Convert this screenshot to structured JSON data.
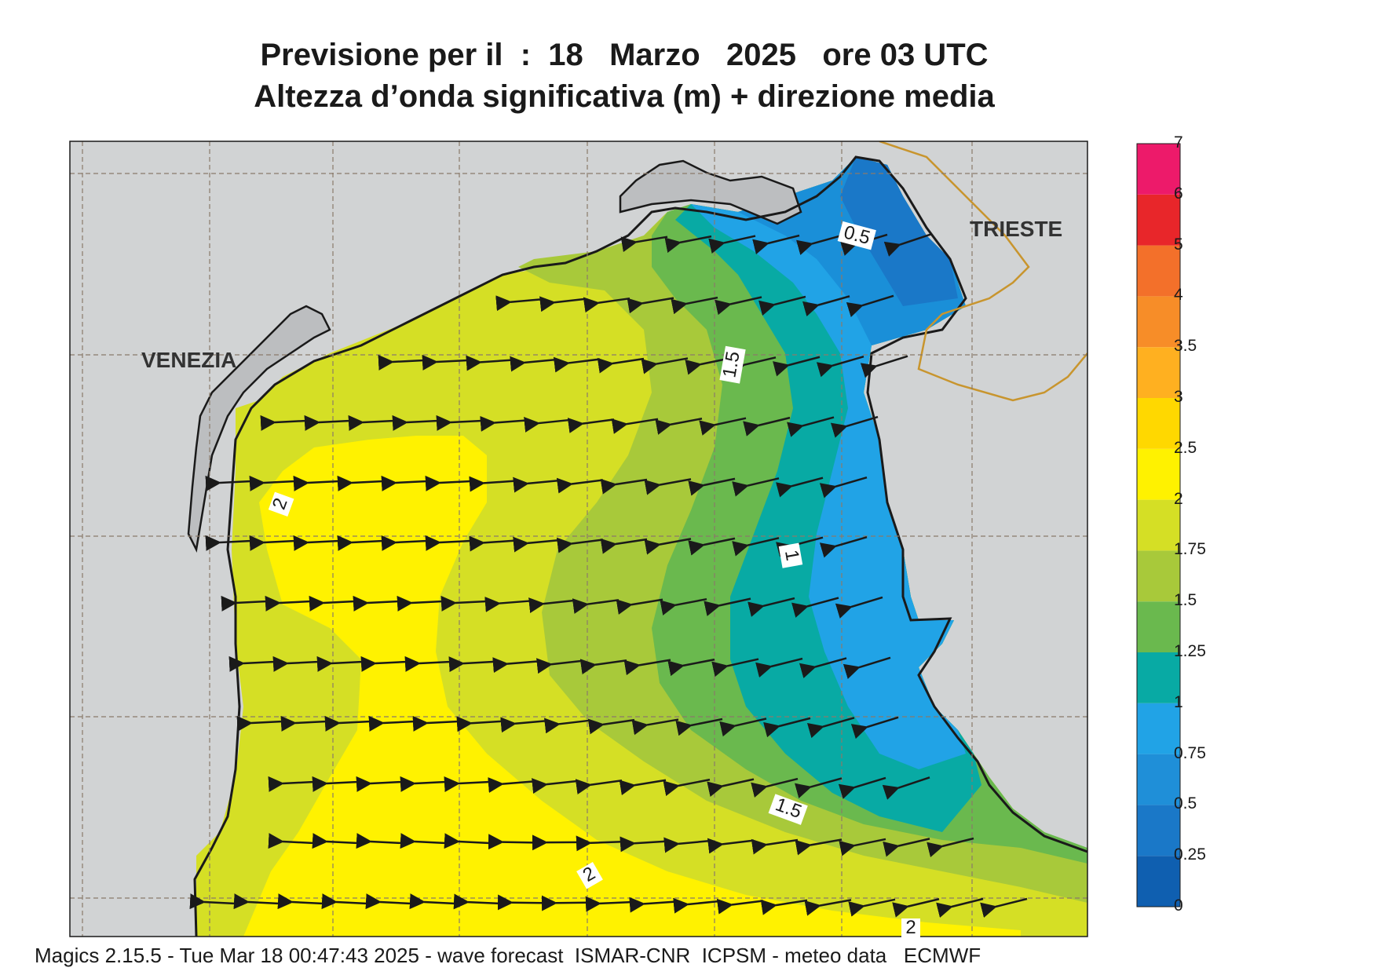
{
  "title": {
    "line1": "Previsione per il  :  18   Marzo   2025   ore 03 UTC",
    "line2": "Altezza d’onda significativa (m) + direzione media"
  },
  "city_labels": {
    "venezia": "VENEZIA",
    "trieste": "TRIESTE"
  },
  "contour_labels": [
    "0.5",
    "1.5",
    "1",
    "1.5",
    "2",
    "2",
    "2"
  ],
  "colorbar": {
    "labels": [
      "0",
      "0.25",
      "0.5",
      "0.75",
      "1",
      "1.25",
      "1.5",
      "1.75",
      "2",
      "2.5",
      "3",
      "3.5",
      "4",
      "5",
      "6",
      "7"
    ],
    "colors": [
      "#0f5fb0",
      "#1a78c8",
      "#1f8fd8",
      "#21a3e6",
      "#08aaa4",
      "#6ab94e",
      "#a8c93a",
      "#d5df25",
      "#fff200",
      "#ffd800",
      "#ffb020",
      "#f78d28",
      "#f3702a",
      "#e8262a",
      "#ed1a6a"
    ]
  },
  "colors": {
    "land": "#d1d3d4",
    "land_dark": "#bcbec0",
    "coast": "#1a1a1a",
    "border": "#c8952e",
    "grid": "#8a7a6a",
    "arrow": "#1a1a1a"
  },
  "footer": "Magics 2.15.5 - Tue Mar 18 00:47:43 2025 - wave forecast  ISMAR-CNR  ICPSM - meteo data   ECMWF"
}
